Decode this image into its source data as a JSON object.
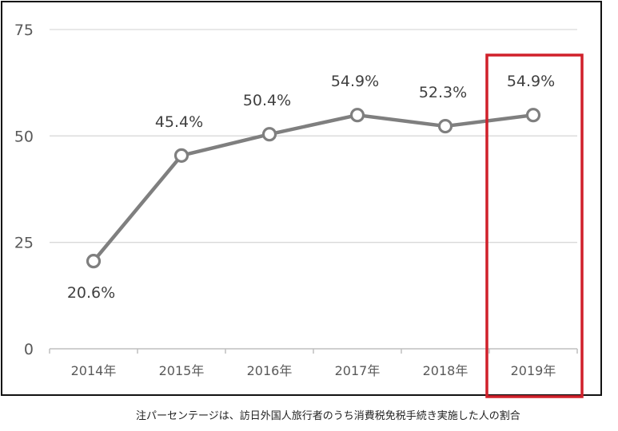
{
  "chart_data": {
    "type": "line",
    "categories": [
      "2014年",
      "2015年",
      "2016年",
      "2017年",
      "2018年",
      "2019年"
    ],
    "series": [
      {
        "values": [
          20.6,
          45.4,
          50.4,
          54.9,
          52.3,
          54.9
        ]
      }
    ],
    "data_labels": [
      "20.6%",
      "45.4%",
      "50.4%",
      "54.9%",
      "52.3%",
      "54.9%"
    ],
    "yticks": [
      "0",
      "25",
      "50",
      "75"
    ],
    "ylim": [
      0,
      75
    ],
    "grid": true,
    "highlight_category": "2019年",
    "colors": {
      "line": "#7f7f7f",
      "highlight": "#d0202a",
      "grid": "#d9d9d9"
    }
  },
  "note": "注パーセンテージは、訪日外国人旅行者のうち消費税免税手続き実施した人の割合"
}
